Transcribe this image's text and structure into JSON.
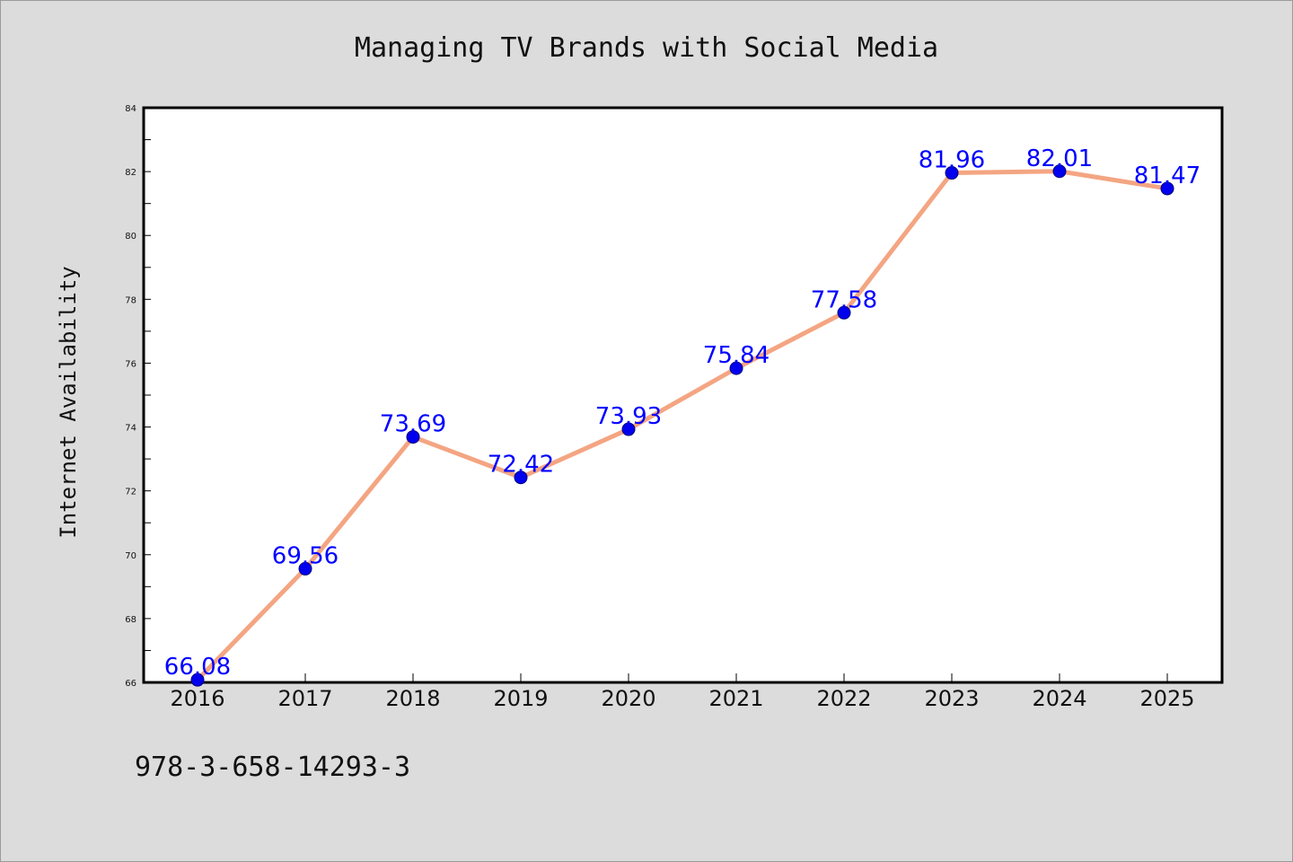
{
  "chart_data": {
    "type": "line",
    "title": "Managing TV Brands with Social Media",
    "xlabel": "",
    "ylabel": "Internet Availability",
    "categories": [
      "2016",
      "2017",
      "2018",
      "2019",
      "2020",
      "2021",
      "2022",
      "2023",
      "2024",
      "2025"
    ],
    "series": [
      {
        "values": [
          66.08,
          69.56,
          73.69,
          72.42,
          73.93,
          75.84,
          77.58,
          81.96,
          82.01,
          81.47
        ],
        "labels": [
          "66.08",
          "69.56",
          "73.69",
          "72.42",
          "73.93",
          "75.84",
          "77.58",
          "81.96",
          "82.01",
          "81.47"
        ],
        "line_color": "#f4a582",
        "marker_color": "#0000ee",
        "label_color": "#0000ff"
      }
    ],
    "ylim": [
      66,
      84
    ],
    "yticks": [
      "66",
      "68",
      "70",
      "72",
      "74",
      "76",
      "78",
      "80",
      "82",
      "84"
    ],
    "grid": false,
    "legend": "none"
  },
  "footer": {
    "isbn": "978-3-658-14293-3"
  },
  "colors": {
    "background": "#dcdcdc",
    "plot_background": "#ffffff"
  }
}
